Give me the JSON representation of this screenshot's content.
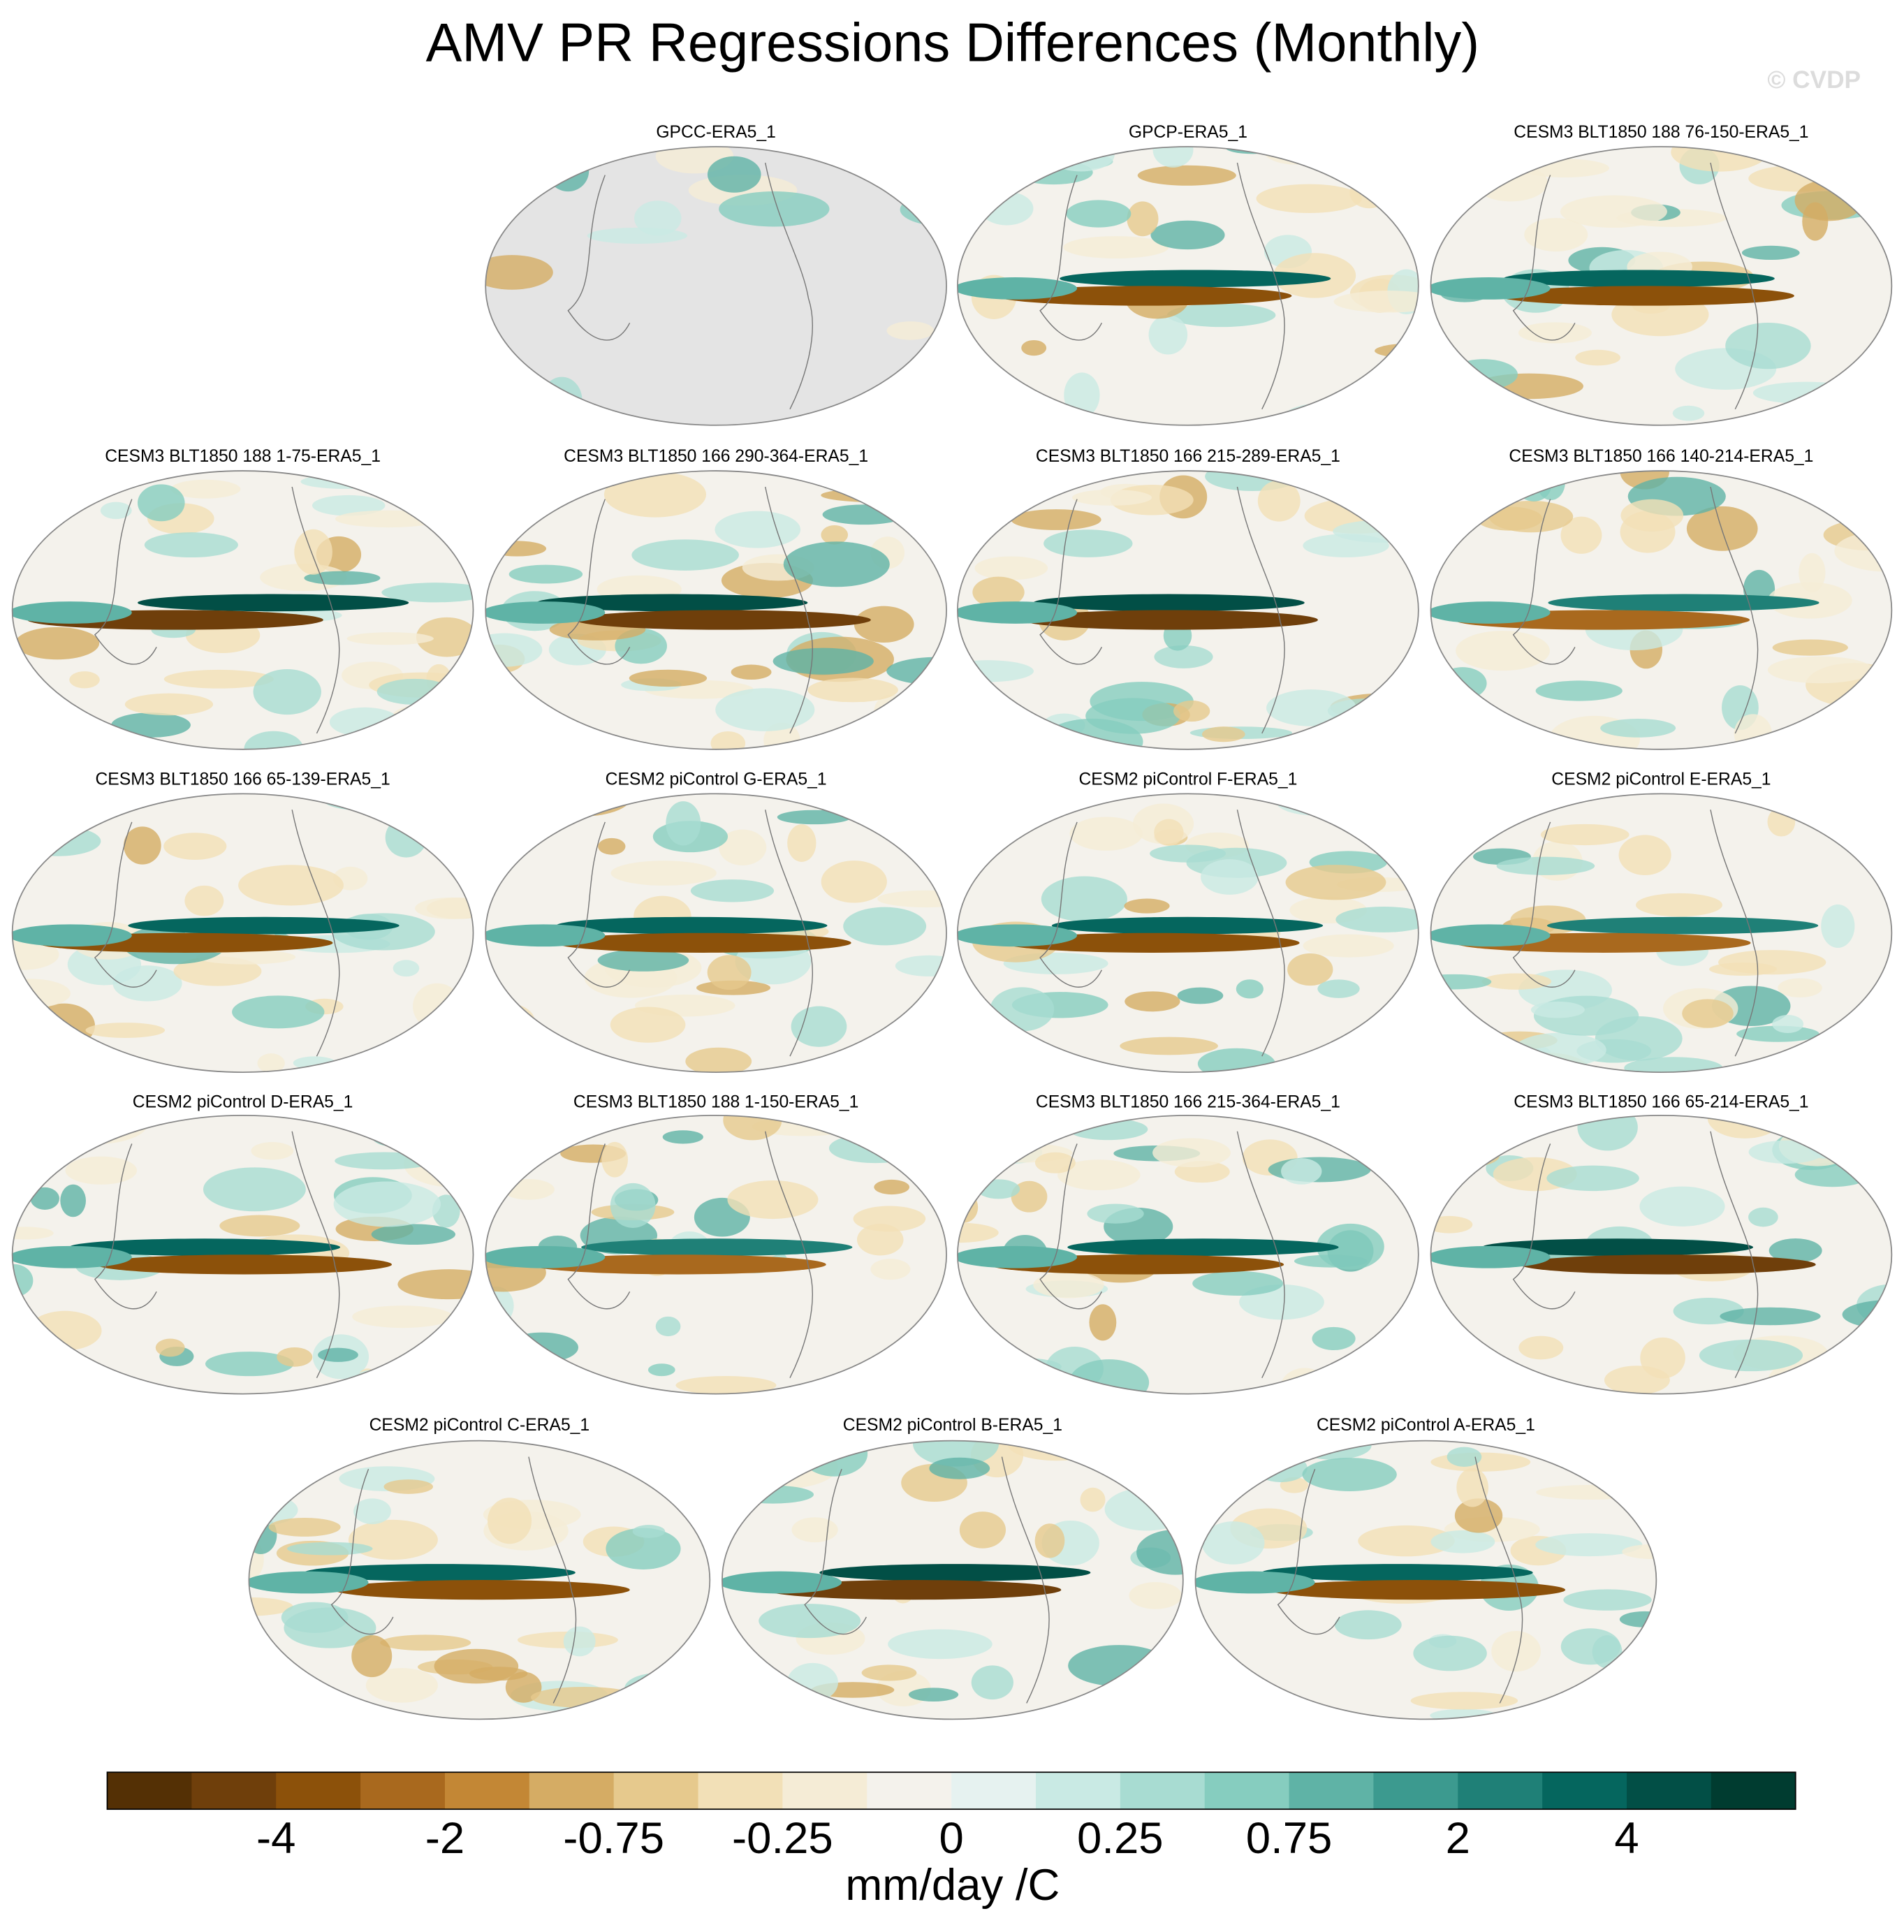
{
  "title": "AMV PR Regressions Differences (Monthly)",
  "watermark": "© CVDP",
  "panels": [
    {
      "title": "GPCC-ERA5_1"
    },
    {
      "title": "GPCP-ERA5_1"
    },
    {
      "title": "CESM3 BLT1850 188 76-150-ERA5_1"
    },
    {
      "title": "CESM3 BLT1850 188 1-75-ERA5_1"
    },
    {
      "title": "CESM3 BLT1850 166 290-364-ERA5_1"
    },
    {
      "title": "CESM3 BLT1850 166 215-289-ERA5_1"
    },
    {
      "title": "CESM3 BLT1850 166 140-214-ERA5_1"
    },
    {
      "title": "CESM3 BLT1850 166 65-139-ERA5_1"
    },
    {
      "title": "CESM2 piControl G-ERA5_1"
    },
    {
      "title": "CESM2 piControl F-ERA5_1"
    },
    {
      "title": "CESM2 piControl E-ERA5_1"
    },
    {
      "title": "CESM2 piControl D-ERA5_1"
    },
    {
      "title": "CESM3 BLT1850 188 1-150-ERA5_1"
    },
    {
      "title": "CESM3 BLT1850 166 215-364-ERA5_1"
    },
    {
      "title": "CESM3 BLT1850 166 65-214-ERA5_1"
    },
    {
      "title": "CESM2 piControl C-ERA5_1"
    },
    {
      "title": "CESM2 piControl B-ERA5_1"
    },
    {
      "title": "CESM2 piControl A-ERA5_1"
    }
  ],
  "colorbar": {
    "colors": [
      "#543005",
      "#6f3f0b",
      "#8c510a",
      "#a9691e",
      "#c38735",
      "#d5ac64",
      "#e6c98d",
      "#f2e0b7",
      "#f5ecd6",
      "#f4f2ec",
      "#e6f2f0",
      "#c9eae4",
      "#a8dcd2",
      "#86cdbf",
      "#5fb3a6",
      "#3c9a8f",
      "#1f8077",
      "#05665e",
      "#024f46",
      "#003c30"
    ],
    "labels": [
      -4,
      -2,
      -0.75,
      -0.25,
      0,
      0.25,
      0.75,
      2,
      4
    ],
    "units": "mm/day /C"
  }
}
